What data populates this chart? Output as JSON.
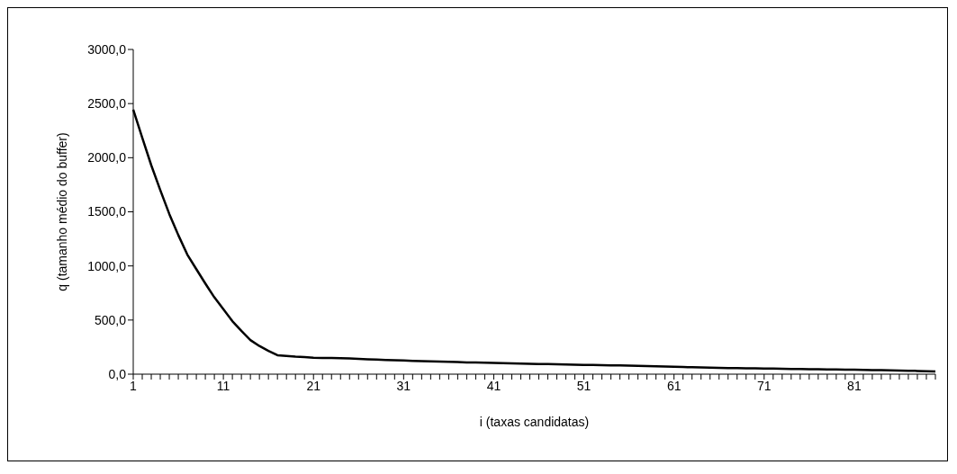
{
  "chart_data": {
    "type": "line",
    "xlabel": "i (taxas candidatas)",
    "ylabel": "q (tamanho médio do buffer)",
    "categories": [
      "1",
      null,
      null,
      null,
      null,
      null,
      null,
      null,
      null,
      null,
      "11",
      null,
      null,
      null,
      null,
      null,
      null,
      null,
      null,
      null,
      "21",
      null,
      null,
      null,
      null,
      null,
      null,
      null,
      null,
      null,
      "31",
      null,
      null,
      null,
      null,
      null,
      null,
      null,
      null,
      null,
      "41",
      null,
      null,
      null,
      null,
      null,
      null,
      null,
      null,
      null,
      "51",
      null,
      null,
      null,
      null,
      null,
      null,
      null,
      null,
      null,
      "61",
      null,
      null,
      null,
      null,
      null,
      null,
      null,
      null,
      null,
      "71",
      null,
      null,
      null,
      null,
      null,
      null,
      null,
      null,
      null,
      "81",
      null,
      null,
      null,
      null,
      null,
      null,
      null,
      null,
      null
    ],
    "series": [
      {
        "color": "#000000",
        "values": [
          2445,
          2185,
          1930,
          1700,
          1480,
          1285,
          1105,
          970,
          837,
          710,
          600,
          490,
          400,
          315,
          260,
          215,
          175,
          168,
          162,
          158,
          152,
          150,
          149,
          147,
          145,
          142,
          138,
          135,
          131,
          128,
          126,
          123,
          121,
          118,
          116,
          114,
          112,
          109,
          107,
          105,
          103,
          101,
          99,
          98,
          96,
          94,
          93,
          91,
          90,
          88,
          86,
          85,
          83,
          82,
          80,
          78,
          76,
          74,
          72,
          70,
          68,
          66,
          64,
          62,
          60,
          59,
          57,
          56,
          54,
          53,
          52,
          51,
          49,
          48,
          47,
          46,
          45,
          44,
          43,
          42,
          41,
          40,
          38,
          37,
          36,
          34,
          32,
          30,
          28,
          25
        ]
      }
    ],
    "ylim": [
      0,
      3000
    ],
    "yticks": [
      {
        "value": 0,
        "label": "0,0"
      },
      {
        "value": 500,
        "label": "500,0"
      },
      {
        "value": 1000,
        "label": "1000,0"
      },
      {
        "value": 1500,
        "label": "1500,0"
      },
      {
        "value": 2000,
        "label": "2000,0"
      },
      {
        "value": 2500,
        "label": "2500,0"
      },
      {
        "value": 3000,
        "label": "3000,0"
      }
    ],
    "grid": false,
    "legend": false,
    "marker": "none",
    "line_style": "solid"
  }
}
